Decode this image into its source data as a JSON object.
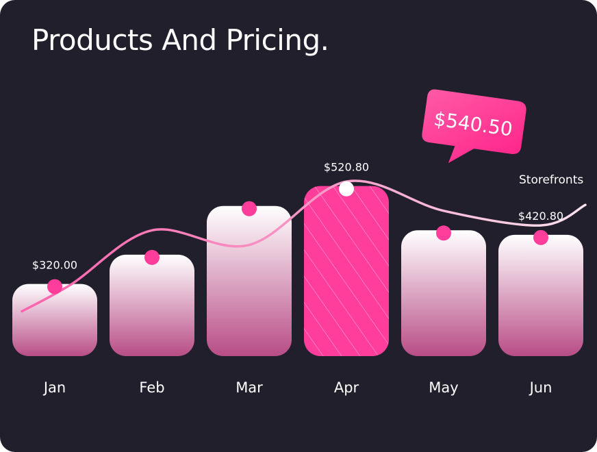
{
  "title": "Products And Pricing.",
  "chart_data": {
    "type": "bar",
    "categories": [
      "Jan",
      "Feb",
      "Mar",
      "Apr",
      "May",
      "Jun"
    ],
    "values": [
      320.0,
      380.0,
      480.0,
      520.8,
      430.0,
      420.8
    ],
    "value_labels": [
      "$320.00",
      "",
      "",
      "$520.80",
      "",
      "$420.80"
    ],
    "highlight_index": 3,
    "line_series": {
      "name": "Storefronts",
      "values": [
        320.0,
        430.0,
        400.0,
        530.0,
        470.0,
        440.0
      ]
    },
    "callout": {
      "text": "$540.50"
    },
    "colors": {
      "background": "#211f2c",
      "bar_top": "#ffffff",
      "bar_bottom": "#b84d86",
      "highlight": "#ff3d9a",
      "dot": "#ff3d9a",
      "line": "#f3a6cc",
      "callout": "#ff2f8e"
    }
  }
}
